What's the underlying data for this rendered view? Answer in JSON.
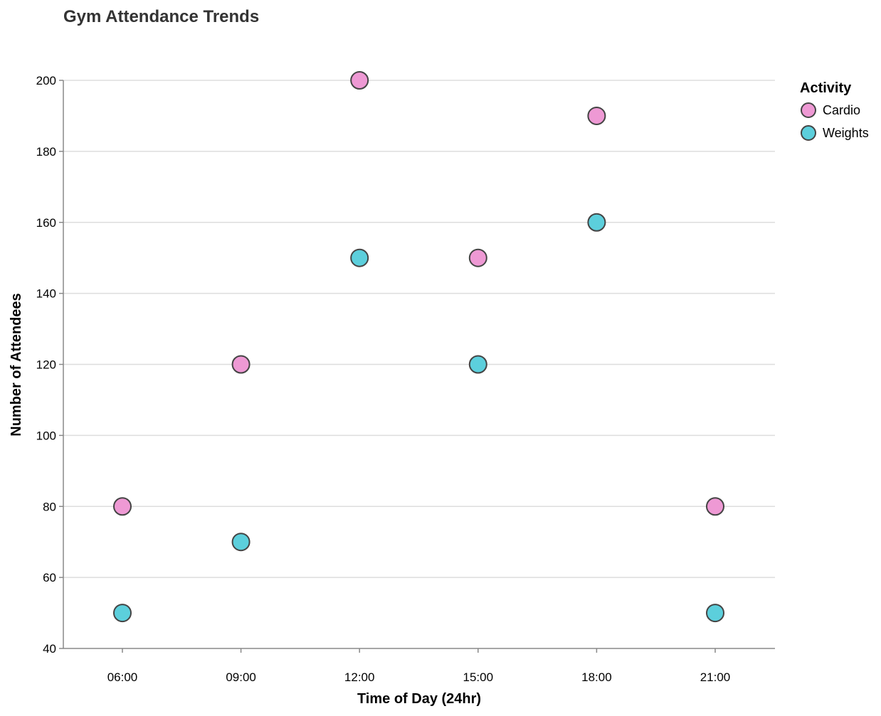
{
  "chart_data": {
    "type": "scatter",
    "title": "Gym Attendance Trends",
    "xlabel": "Time of Day (24hr)",
    "ylabel": "Number of Attendees",
    "x_categories": [
      "06:00",
      "09:00",
      "12:00",
      "15:00",
      "18:00",
      "21:00"
    ],
    "ylim": [
      40,
      200
    ],
    "y_ticks": [
      40,
      60,
      80,
      100,
      120,
      140,
      160,
      180,
      200
    ],
    "grid": "horizontal",
    "legend": {
      "title": "Activity",
      "placement": "top-right"
    },
    "series": [
      {
        "name": "Cardio",
        "color": "#ee99d4",
        "points": [
          {
            "x": "06:00",
            "y": 80
          },
          {
            "x": "09:00",
            "y": 120
          },
          {
            "x": "12:00",
            "y": 200
          },
          {
            "x": "15:00",
            "y": 150
          },
          {
            "x": "18:00",
            "y": 190
          },
          {
            "x": "21:00",
            "y": 80
          }
        ]
      },
      {
        "name": "Weights",
        "color": "#5ccfdc",
        "points": [
          {
            "x": "06:00",
            "y": 50
          },
          {
            "x": "09:00",
            "y": 70
          },
          {
            "x": "12:00",
            "y": 150
          },
          {
            "x": "15:00",
            "y": 120
          },
          {
            "x": "18:00",
            "y": 160
          },
          {
            "x": "21:00",
            "y": 50
          }
        ]
      }
    ],
    "point_stroke_color": "#444444"
  }
}
